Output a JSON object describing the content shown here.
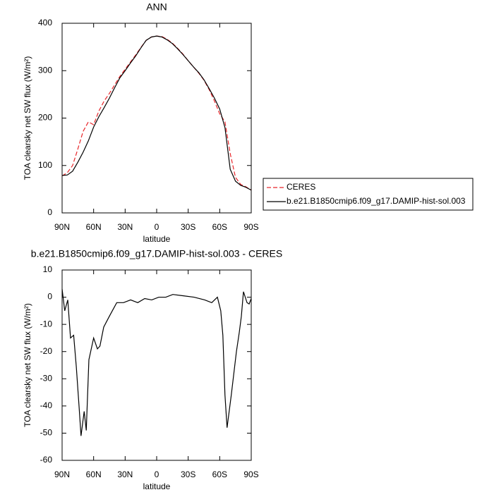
{
  "chart_data": [
    {
      "type": "line",
      "title": "ANN",
      "xlabel": "latitude",
      "ylabel": "TOA clearsky net SW flux (W/m²)",
      "x": [
        90,
        85,
        80,
        75,
        70,
        65,
        60,
        55,
        50,
        45,
        40,
        35,
        30,
        25,
        20,
        15,
        10,
        5,
        0,
        -5,
        -10,
        -15,
        -20,
        -25,
        -30,
        -35,
        -40,
        -45,
        -50,
        -55,
        -60,
        -65,
        -70,
        -75,
        -80,
        -85,
        -90
      ],
      "series": [
        {
          "name": "CERES",
          "color": "#e8262a",
          "linestyle": "dashed",
          "values": [
            78,
            85,
            100,
            135,
            172,
            192,
            186,
            215,
            236,
            252,
            270,
            288,
            303,
            318,
            333,
            349,
            364,
            371,
            373,
            372,
            366,
            358,
            347,
            335,
            321,
            308,
            295,
            280,
            260,
            236,
            209,
            192,
            125,
            75,
            60,
            55,
            48
          ]
        },
        {
          "name": "b.e21.B1850cmip6.f09_g17.DAMIP-hist-sol.003",
          "color": "#000000",
          "linestyle": "solid",
          "values": [
            79,
            80,
            88,
            107,
            128,
            152,
            181,
            203,
            222,
            242,
            264,
            285,
            300,
            316,
            331,
            348,
            364,
            371,
            373,
            371,
            365,
            357,
            346,
            334,
            321,
            308,
            296,
            281,
            262,
            242,
            219,
            180,
            92,
            67,
            58,
            54,
            48
          ]
        }
      ],
      "xlim": [
        90,
        -90
      ],
      "xticks": [
        {
          "value": 90,
          "label": "90N"
        },
        {
          "value": 60,
          "label": "60N"
        },
        {
          "value": 30,
          "label": "30N"
        },
        0,
        {
          "value": -30,
          "label": "30S"
        },
        {
          "value": -60,
          "label": "60S"
        },
        {
          "value": -90,
          "label": "90S"
        }
      ],
      "ylim": [
        0,
        400
      ],
      "yticks": [
        0,
        100,
        200,
        300,
        400
      ],
      "legend": "right"
    },
    {
      "type": "line",
      "title": "b.e21.B1850cmip6.f09_g17.DAMIP-hist-sol.003 - CERES",
      "xlabel": "latitude",
      "ylabel": "TOA clearsky net SW flux (W/m²)",
      "x": [
        90,
        87.5,
        84.6,
        82,
        79,
        76.5,
        73.8,
        72,
        69,
        67,
        64.5,
        60,
        56.4,
        54,
        50.4,
        45,
        38,
        31.6,
        24.8,
        18,
        11.4,
        4.7,
        -2,
        -8.7,
        -15.4,
        -25.5,
        -35.6,
        -45.7,
        -52.4,
        -57.8,
        -61,
        -63,
        -65,
        -67,
        -71,
        -75.9,
        -78.6,
        -80.6,
        -82.6,
        -86,
        -88,
        -90
      ],
      "series": [
        {
          "name": "b.e21.B1850cmip6.f09_g17.DAMIP-hist-sol.003 - CERES",
          "color": "#000000",
          "linestyle": "solid",
          "values": [
            3,
            -5,
            -1,
            -15,
            -14,
            -25.5,
            -40.5,
            -51,
            -42,
            -49,
            -23,
            -15,
            -19,
            -18,
            -11,
            -7,
            -2,
            -2,
            -1,
            -2,
            -0.5,
            -1,
            0,
            0,
            1,
            0.5,
            0,
            -1,
            -2,
            0,
            -5,
            -14,
            -36,
            -48,
            -36,
            -20,
            -13,
            -7,
            2,
            -2,
            -2.5,
            -0.5
          ]
        }
      ],
      "xlim": [
        90,
        -90
      ],
      "xticks": [
        {
          "value": 90,
          "label": "90N"
        },
        {
          "value": 60,
          "label": "60N"
        },
        {
          "value": 30,
          "label": "30N"
        },
        0,
        {
          "value": -30,
          "label": "30S"
        },
        {
          "value": -60,
          "label": "60S"
        },
        {
          "value": -90,
          "label": "90S"
        }
      ],
      "ylim": [
        -60,
        10
      ],
      "yticks": [
        10,
        0,
        -10,
        -20,
        -30,
        -40,
        -50,
        -60
      ]
    }
  ]
}
